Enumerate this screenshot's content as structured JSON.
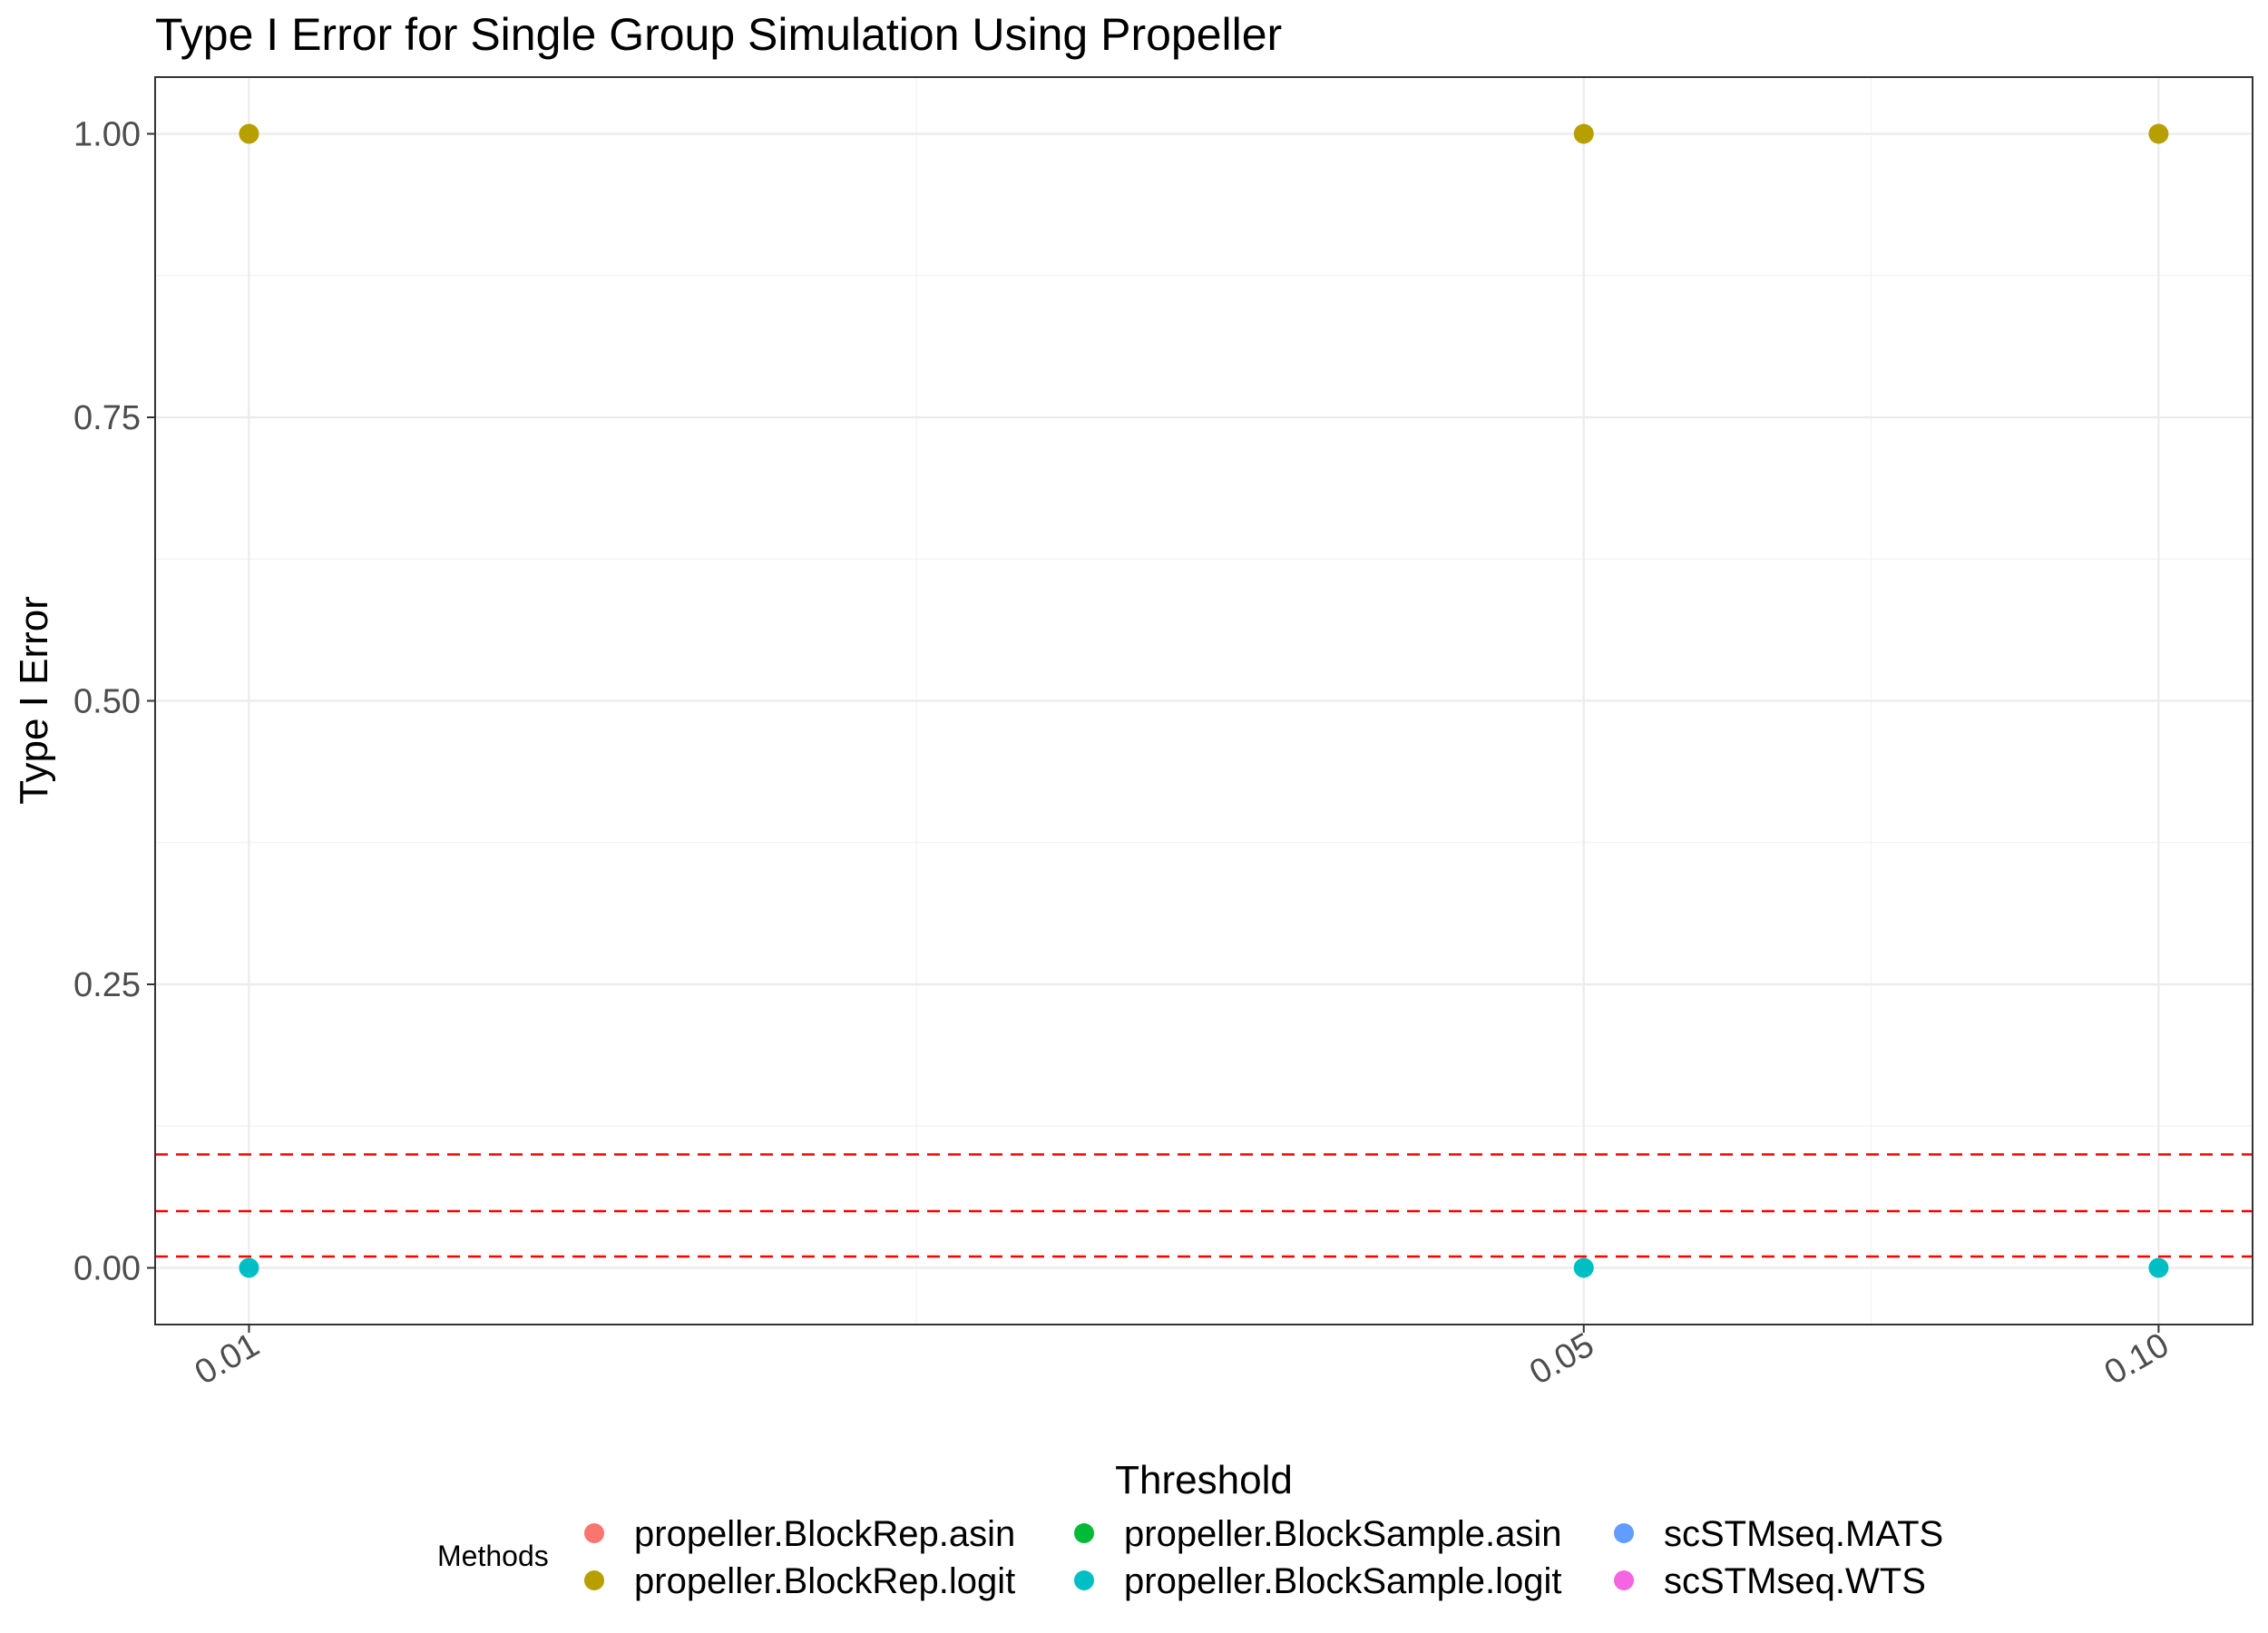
{
  "chart_data": {
    "type": "scatter",
    "title": "Type I Error for Single Group Simulation Using Propeller",
    "xlabel": "Threshold",
    "ylabel": "Type I Error",
    "x_scale": "log10",
    "x_ticks": [
      0.01,
      0.05,
      0.1
    ],
    "x_tick_labels": [
      "0.01",
      "0.05",
      "0.10"
    ],
    "xlim": [
      0.00893,
      0.112
    ],
    "y_ticks": [
      0,
      0.25,
      0.5,
      0.75,
      1.0
    ],
    "y_tick_labels": [
      "0.00",
      "0.25",
      "0.50",
      "0.75",
      "1.00"
    ],
    "ylim": [
      -0.05,
      1.05
    ],
    "grid": true,
    "reference_lines": {
      "orientation": "horizontal",
      "style": "dashed",
      "color": "#FF0000",
      "y": [
        0.01,
        0.05,
        0.1
      ]
    },
    "legend": {
      "title": "Methods",
      "position": "bottom",
      "entries": [
        {
          "name": "propeller.BlockRep.asin",
          "color": "#F8766D"
        },
        {
          "name": "propeller.BlockRep.logit",
          "color": "#B79F00"
        },
        {
          "name": "propeller.BlockSample.asin",
          "color": "#00BA38"
        },
        {
          "name": "propeller.BlockSample.logit",
          "color": "#00BFC4"
        },
        {
          "name": "scSTMseq.MATS",
          "color": "#619CFF"
        },
        {
          "name": "scSTMseq.WTS",
          "color": "#F564E3"
        }
      ]
    },
    "series": [
      {
        "name": "propeller.BlockRep.logit",
        "color": "#B79F00",
        "x": [
          0.01,
          0.05,
          0.1
        ],
        "y": [
          1,
          1,
          1
        ]
      },
      {
        "name": "propeller.BlockSample.logit",
        "color": "#00BFC4",
        "x": [
          0.01,
          0.05,
          0.1
        ],
        "y": [
          0,
          0,
          0
        ]
      }
    ]
  }
}
